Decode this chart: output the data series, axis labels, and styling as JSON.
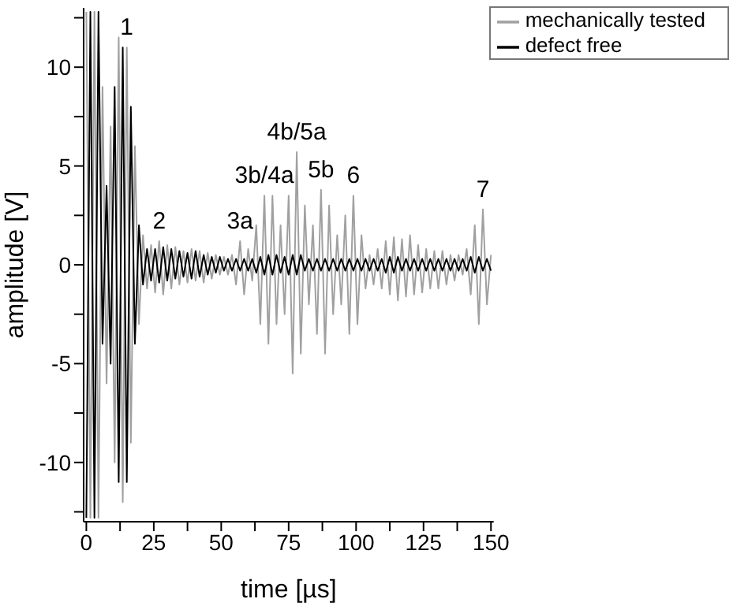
{
  "chart_data": {
    "type": "line",
    "xlabel": "time [µs]",
    "ylabel": "amplitude [V]",
    "x": [
      0,
      1.5,
      3,
      4.5,
      6,
      7.5,
      9,
      10.5,
      12,
      13.5,
      15,
      16.5,
      18,
      19.5,
      21,
      22.5,
      24,
      25.5,
      27,
      28.5,
      30,
      31.5,
      33,
      34.5,
      36,
      37.5,
      39,
      40.5,
      42,
      43.5,
      45,
      46.5,
      48,
      49.5,
      51,
      52.5,
      54,
      55.5,
      57,
      58.5,
      60,
      61.5,
      63,
      64.5,
      66,
      67.5,
      69,
      70.5,
      72,
      73.5,
      75,
      76.5,
      78,
      79.5,
      81,
      82.5,
      84,
      85.5,
      87,
      88.5,
      90,
      91.5,
      93,
      94.5,
      96,
      97.5,
      99,
      100.5,
      102,
      103.5,
      105,
      106.5,
      108,
      109.5,
      111,
      112.5,
      114,
      115.5,
      117,
      118.5,
      120,
      121.5,
      123,
      124.5,
      126,
      127.5,
      129,
      130.5,
      132,
      133.5,
      135,
      136.5,
      138,
      139.5,
      141,
      142.5,
      144,
      145.5,
      147,
      148.5,
      150
    ],
    "series": [
      {
        "name": "mechanically tested",
        "color": "#a0a0a0",
        "values": [
          12.8,
          -12.8,
          12.8,
          -12.8,
          9,
          -6,
          7,
          -10,
          11.5,
          -12,
          11,
          -9,
          6,
          -3,
          1.5,
          -1.2,
          1,
          -1.4,
          1.2,
          -1.5,
          1,
          -1.2,
          0.9,
          -1,
          0.7,
          -0.9,
          0.8,
          -0.8,
          0.7,
          -0.9,
          0.6,
          -0.7,
          0.5,
          -0.5,
          0.4,
          -0.5,
          0.5,
          -1,
          1.2,
          -1.5,
          0.8,
          -0.8,
          2,
          -3,
          3.5,
          -4,
          3.5,
          -3,
          2,
          -2.5,
          3.5,
          -5.5,
          5.7,
          -4.5,
          3,
          -2,
          2,
          -3.5,
          3.8,
          -4.5,
          3,
          -2.5,
          1.5,
          -2,
          2.5,
          -3.5,
          3.5,
          -3,
          1.5,
          -1.2,
          0.5,
          -1,
          0.8,
          -1.2,
          1.2,
          -1.5,
          1.4,
          -1.8,
          1.3,
          -1.6,
          1.5,
          -1.5,
          1,
          -1.4,
          0.8,
          -1.2,
          0.7,
          -1.2,
          0.7,
          -1,
          0.5,
          -0.8,
          0.5,
          -0.5,
          0.8,
          -1.5,
          2,
          -3,
          2.8,
          -2,
          0.5
        ]
      },
      {
        "name": "defect free",
        "color": "#000000",
        "values": [
          -12.8,
          12.8,
          -12.8,
          12.8,
          -4,
          4,
          -5,
          9,
          -11,
          11,
          -11,
          8,
          -4,
          2,
          -1,
          0.8,
          -0.8,
          0.8,
          -0.9,
          0.9,
          -0.8,
          0.8,
          -0.7,
          0.7,
          -0.6,
          0.6,
          -0.7,
          0.7,
          -0.6,
          0.5,
          -0.5,
          0.4,
          -0.4,
          0.4,
          -0.3,
          0.3,
          -0.3,
          0.3,
          -0.3,
          0.3,
          -0.3,
          0.3,
          -0.4,
          0.4,
          -0.5,
          0.5,
          -0.5,
          0.5,
          -0.4,
          0.4,
          -0.5,
          0.5,
          -0.5,
          0.5,
          -0.3,
          0.3,
          -0.3,
          0.3,
          -0.3,
          0.3,
          -0.3,
          0.3,
          -0.3,
          0.3,
          -0.3,
          0.3,
          -0.3,
          0.3,
          -0.3,
          0.3,
          -0.3,
          0.3,
          -0.3,
          0.3,
          -0.4,
          0.4,
          -0.4,
          0.4,
          -0.3,
          0.3,
          -0.3,
          0.3,
          -0.3,
          0.3,
          -0.3,
          0.3,
          -0.3,
          0.3,
          -0.3,
          0.3,
          -0.3,
          0.3,
          -0.3,
          0.3,
          -0.3,
          0.4,
          -0.4,
          0.4,
          -0.3,
          0.3,
          -0.3
        ]
      }
    ],
    "xlim": [
      -1,
      151
    ],
    "xticks": [
      0,
      {
        "value": 12.5,
        "label": null
      },
      25,
      {
        "value": 37.5,
        "label": null
      },
      50,
      {
        "value": 62.5,
        "label": null
      },
      75,
      {
        "value": 87.5,
        "label": null
      },
      100,
      {
        "value": 112.5,
        "label": null
      },
      125,
      {
        "value": 137.5,
        "label": null
      },
      150
    ],
    "ylim": [
      -13,
      13
    ],
    "yticks": [
      {
        "value": -12.5,
        "label": null
      },
      -10,
      {
        "value": -7.5,
        "label": null
      },
      -5,
      {
        "value": -2.5,
        "label": null
      },
      0,
      {
        "value": 2.5,
        "label": null
      },
      5,
      {
        "value": 7.5,
        "label": null
      },
      10,
      {
        "value": 12.5,
        "label": null
      }
    ],
    "annotations": [
      {
        "text": "1",
        "x": 15,
        "y": 11
      },
      {
        "text": "2",
        "x": 27,
        "y": 1.2
      },
      {
        "text": "3a",
        "x": 57,
        "y": 1.2
      },
      {
        "text": "3b/4a",
        "x": 66,
        "y": 3.5
      },
      {
        "text": "4b/5a",
        "x": 78,
        "y": 5.7
      },
      {
        "text": "5b",
        "x": 87,
        "y": 3.8
      },
      {
        "text": "6",
        "x": 99,
        "y": 3.5
      },
      {
        "text": "7",
        "x": 147,
        "y": 2.8
      }
    ],
    "grid": false,
    "legend": "top right",
    "marker": "none",
    "line_style": "solid"
  }
}
